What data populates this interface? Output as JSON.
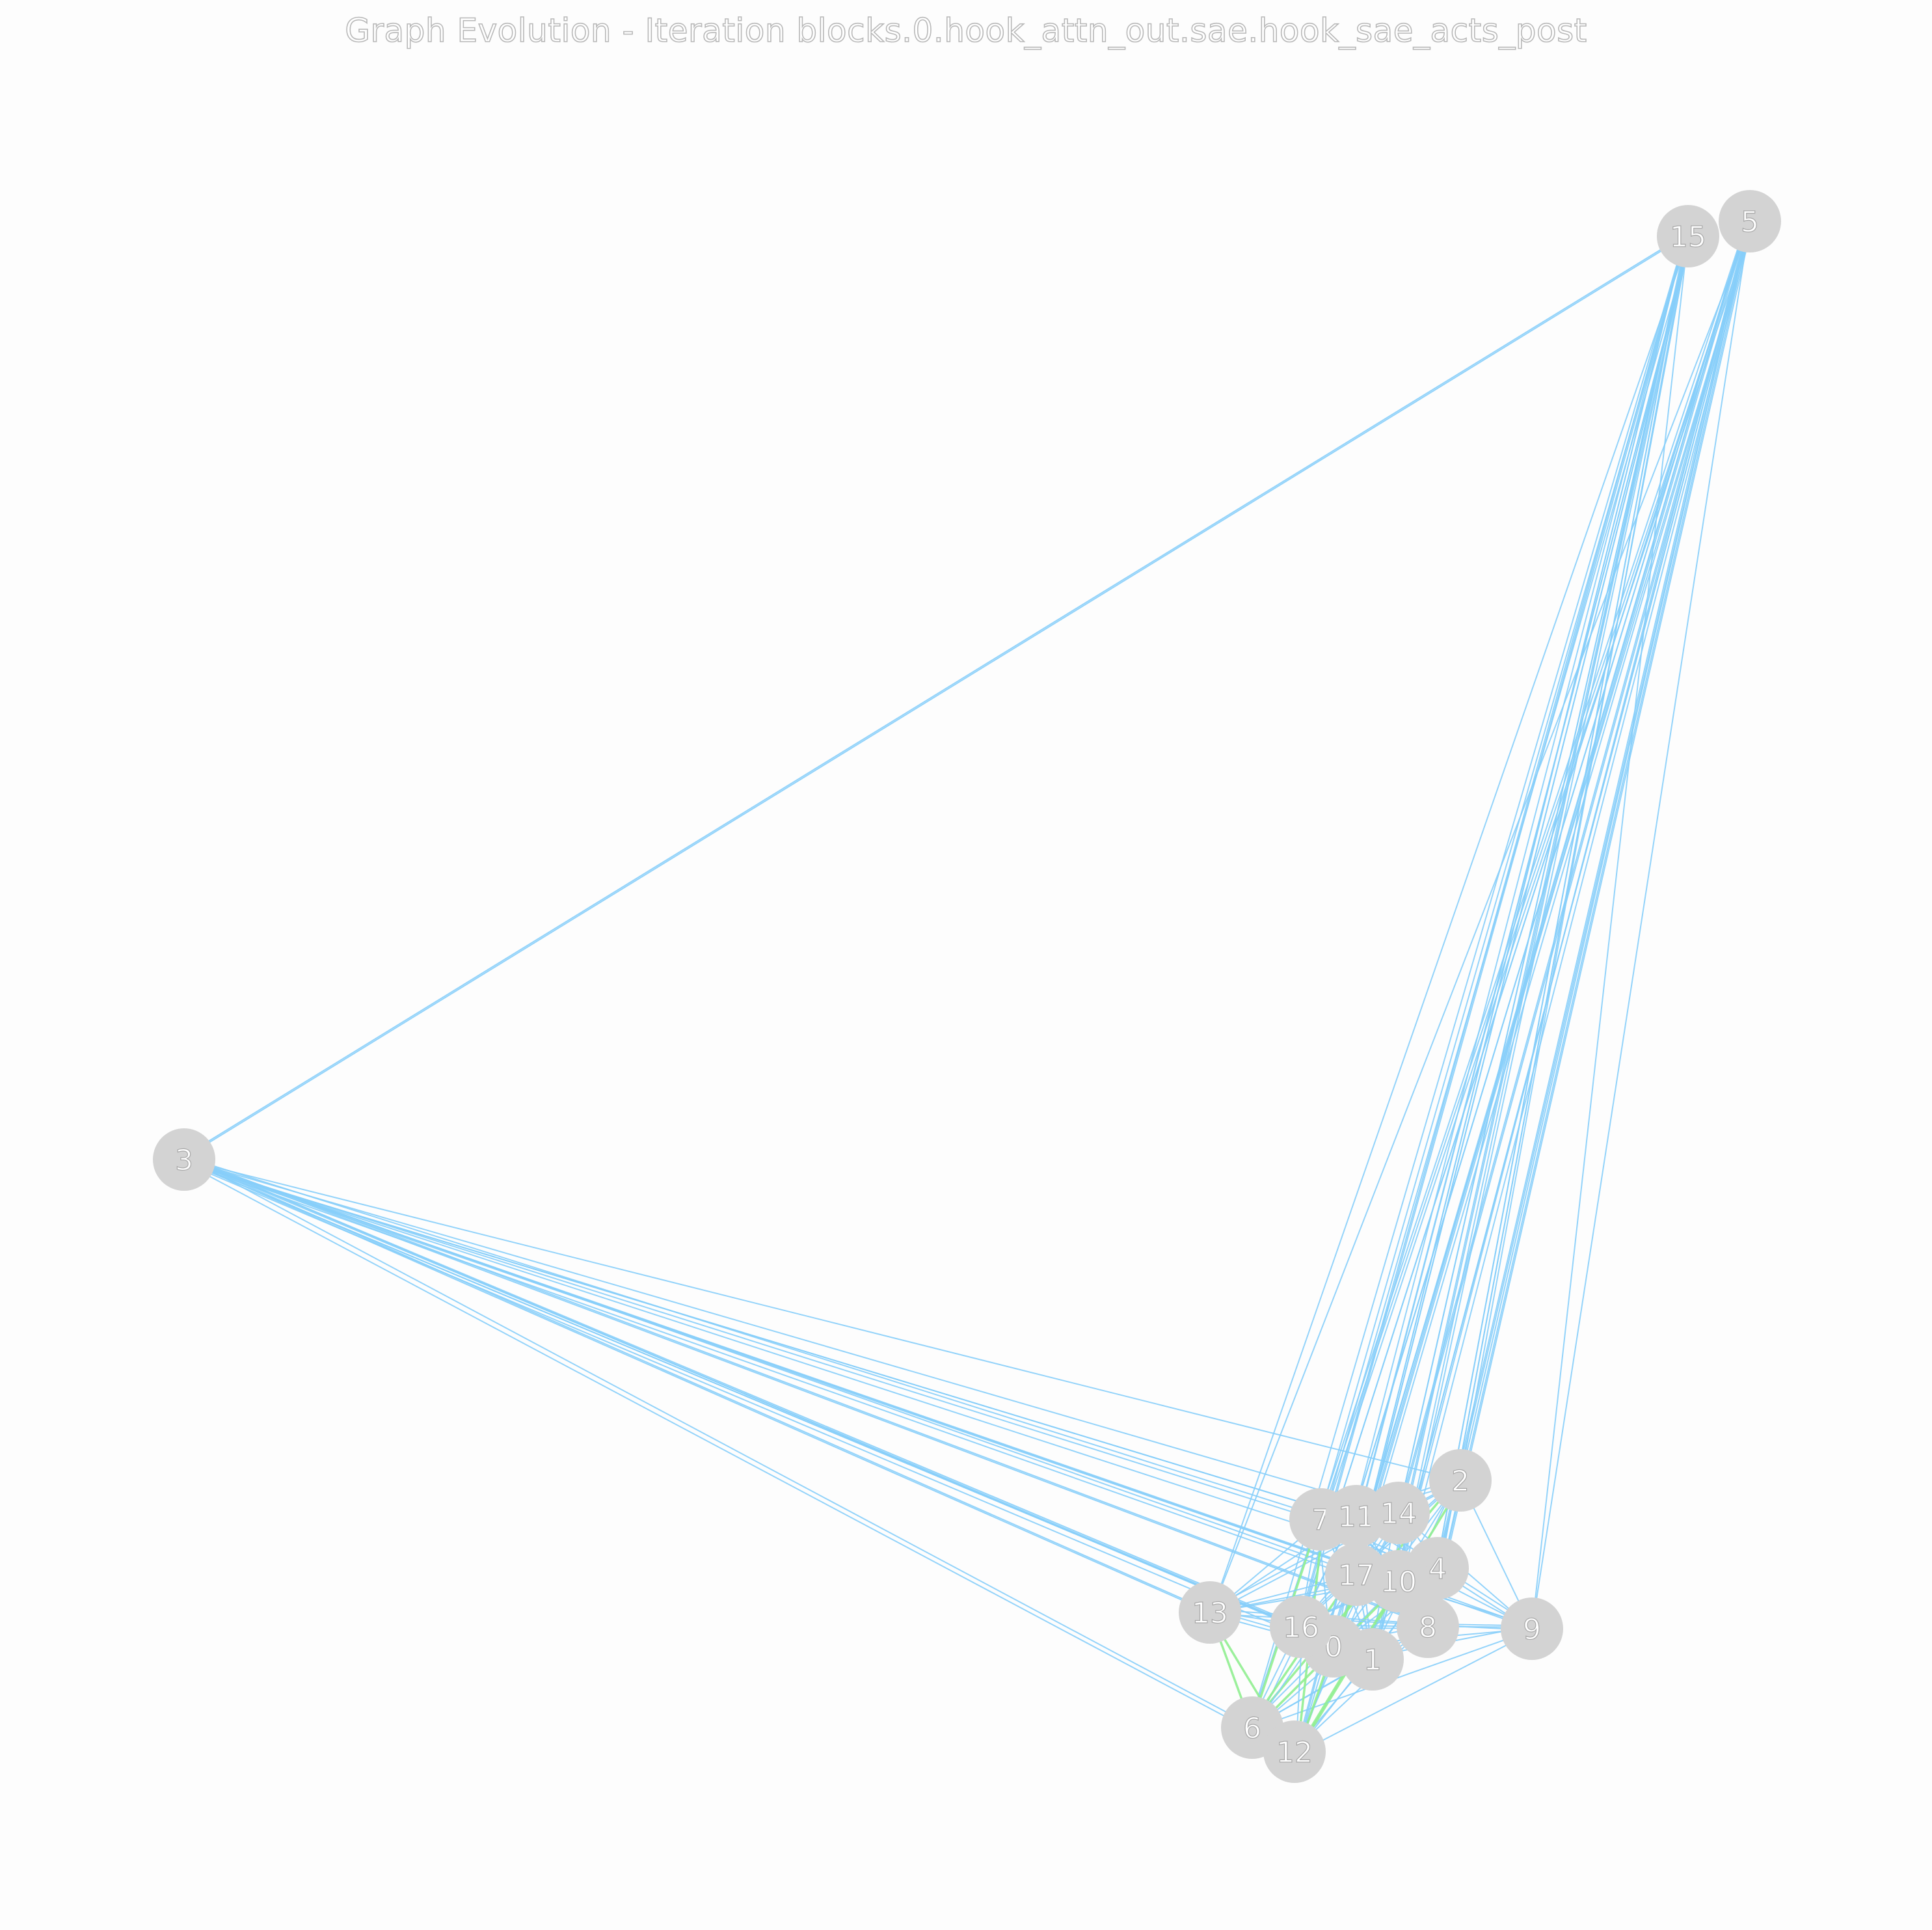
{
  "title": "Graph Evolution - Iteration blocks.0.hook_attn_out.sae.hook_sae_acts_post",
  "colors": {
    "node_fill": "#d3d3d3",
    "edge_primary": "#87cefa",
    "edge_secondary": "#90ee90",
    "label_outline": "#a8a8a8",
    "background": "#fdfdfd"
  },
  "nodes": [
    {
      "id": "0",
      "label": "0"
    },
    {
      "id": "1",
      "label": "1"
    },
    {
      "id": "2",
      "label": "2"
    },
    {
      "id": "3",
      "label": "3"
    },
    {
      "id": "4",
      "label": "4"
    },
    {
      "id": "5",
      "label": "5"
    },
    {
      "id": "6",
      "label": "6"
    },
    {
      "id": "7",
      "label": "7"
    },
    {
      "id": "8",
      "label": "8"
    },
    {
      "id": "9",
      "label": "9"
    },
    {
      "id": "10",
      "label": "10"
    },
    {
      "id": "11",
      "label": "11"
    },
    {
      "id": "12",
      "label": "12"
    },
    {
      "id": "13",
      "label": "13"
    },
    {
      "id": "14",
      "label": "14"
    },
    {
      "id": "15",
      "label": "15"
    },
    {
      "id": "16",
      "label": "16"
    },
    {
      "id": "17",
      "label": "17"
    }
  ]
}
